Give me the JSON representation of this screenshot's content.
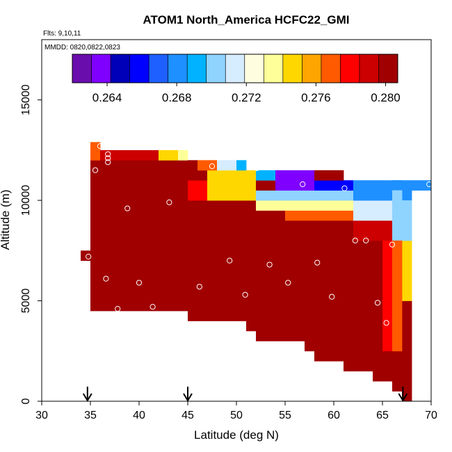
{
  "chart_data": {
    "type": "heatmap",
    "title": "ATOM1 North_America HCFC22_GMI",
    "flights_label": "Flts: 9,10,11",
    "dates_label": "MMDD: 0820,0822,0823",
    "xlabel": "Latitude (deg N)",
    "ylabel": "Altitude (m)",
    "xlim": [
      30,
      70
    ],
    "ylim": [
      0,
      18000
    ],
    "x_ticks": [
      30,
      35,
      40,
      45,
      50,
      55,
      60,
      65,
      70
    ],
    "y_ticks": [
      0,
      5000,
      10000,
      15000
    ],
    "colorbar": {
      "min": 0.262,
      "max": 0.2807,
      "ticks": [
        "0.264",
        "0.268",
        "0.272",
        "0.276",
        "0.280"
      ],
      "tick_values": [
        0.264,
        0.268,
        0.272,
        0.276,
        0.28
      ],
      "colors": [
        "#6a0dad",
        "#7f00ff",
        "#0000b8",
        "#0000ff",
        "#1e60ff",
        "#1e90ff",
        "#00b2ff",
        "#8fd3ff",
        "#d6ecff",
        "#fffde0",
        "#ffff99",
        "#ffd700",
        "#ffa500",
        "#ff5a00",
        "#ff0000",
        "#cc0000",
        "#a00000"
      ]
    },
    "column_profile": {
      "lat_start": 34,
      "lat_step": 1,
      "top_m": [
        7500,
        12900,
        12500,
        12500,
        12500,
        12500,
        12500,
        12500,
        12500,
        12500,
        12500,
        12000,
        12000,
        12000,
        12000,
        12000,
        12000,
        11500,
        11500,
        11500,
        11500,
        11500,
        11500,
        11500,
        11500,
        11500,
        11500,
        11000,
        11000,
        11000,
        11000,
        11000,
        11000,
        10500
      ],
      "bottom_m": [
        7000,
        4500,
        4500,
        4500,
        4500,
        4500,
        4500,
        4500,
        4500,
        4500,
        4500,
        4000,
        4000,
        4000,
        4000,
        4000,
        4000,
        3500,
        3000,
        3000,
        3000,
        3000,
        3000,
        2500,
        2000,
        2000,
        2000,
        1500,
        1500,
        1500,
        1000,
        1000,
        500,
        0
      ]
    },
    "sample_points": [
      {
        "lat": 34.8,
        "alt": 7200
      },
      {
        "lat": 35.5,
        "alt": 11500
      },
      {
        "lat": 36.0,
        "alt": 12700
      },
      {
        "lat": 36.4,
        "alt": 12700
      },
      {
        "lat": 36.8,
        "alt": 12300
      },
      {
        "lat": 36.8,
        "alt": 12100
      },
      {
        "lat": 36.8,
        "alt": 11900
      },
      {
        "lat": 36.6,
        "alt": 6100
      },
      {
        "lat": 37.8,
        "alt": 4600
      },
      {
        "lat": 38.8,
        "alt": 9600
      },
      {
        "lat": 40.0,
        "alt": 5900
      },
      {
        "lat": 41.4,
        "alt": 4700
      },
      {
        "lat": 43.1,
        "alt": 9900
      },
      {
        "lat": 46.2,
        "alt": 5700
      },
      {
        "lat": 47.5,
        "alt": 11700
      },
      {
        "lat": 49.3,
        "alt": 7000
      },
      {
        "lat": 50.9,
        "alt": 5300
      },
      {
        "lat": 52.1,
        "alt": 11600
      },
      {
        "lat": 53.4,
        "alt": 6800
      },
      {
        "lat": 55.3,
        "alt": 5900
      },
      {
        "lat": 56.8,
        "alt": 10800
      },
      {
        "lat": 58.3,
        "alt": 6900
      },
      {
        "lat": 59.8,
        "alt": 5200
      },
      {
        "lat": 61.1,
        "alt": 10600
      },
      {
        "lat": 62.2,
        "alt": 8000
      },
      {
        "lat": 63.3,
        "alt": 8000
      },
      {
        "lat": 59.0,
        "alt": 1800
      },
      {
        "lat": 64.5,
        "alt": 4900
      },
      {
        "lat": 65.4,
        "alt": 3900
      },
      {
        "lat": 66.0,
        "alt": 7800
      },
      {
        "lat": 64.8,
        "alt": 600
      },
      {
        "lat": 69.8,
        "alt": 10800
      }
    ],
    "arrows_lat": [
      34.7,
      45.0,
      67.1
    ]
  }
}
